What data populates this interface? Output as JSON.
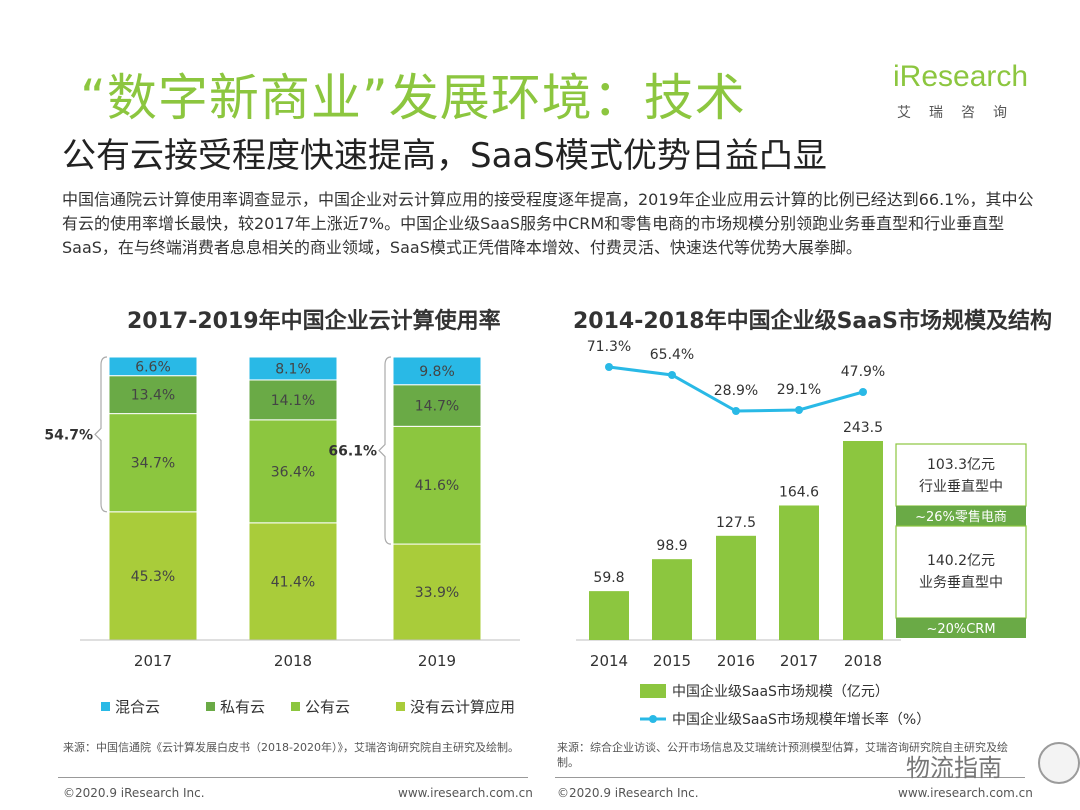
{
  "header": {
    "title": "“数字新商业”发展环境：技术",
    "subtitle": "公有云接受程度快速提高，SaaS模式优势日益凸显",
    "logo_text": "iResearch",
    "logo_sub": "艾瑞咨询"
  },
  "intro": "中国信通院云计算使用率调查显示，中国企业对云计算应用的接受程度逐年提高，2019年企业应用云计算的比例已经达到66.1%，其中公有云的使用率增长最快，较2017年上涨近7%。中国企业级SaaS服务中CRM和零售电商的市场规模分别领跑业务垂直型和行业垂直型SaaS，在与终端消费者息息相关的商业领域，SaaS模式正凭借降本增效、付费灵活、快速迭代等优势大展拳脚。",
  "chart_data": [
    {
      "type": "bar",
      "stacked": true,
      "title": "2017-2019年中国企业云计算使用率",
      "categories": [
        "2017",
        "2018",
        "2019"
      ],
      "series": [
        {
          "name": "没有云计算应用",
          "values": [
            45.3,
            41.4,
            33.9
          ],
          "labels": [
            "45.3%",
            "41.4%",
            "33.9%"
          ],
          "color": "#a9cc3a"
        },
        {
          "name": "公有云",
          "values": [
            34.7,
            36.4,
            41.6
          ],
          "labels": [
            "34.7%",
            "36.4%",
            "41.6%"
          ],
          "color": "#8cc63f"
        },
        {
          "name": "私有云",
          "values": [
            13.4,
            14.1,
            14.7
          ],
          "labels": [
            "13.4%",
            "14.1%",
            "14.7%"
          ],
          "color": "#6aaa46"
        },
        {
          "name": "混合云",
          "values": [
            6.6,
            8.1,
            9.8
          ],
          "labels": [
            "6.6%",
            "8.1%",
            "9.8%"
          ],
          "color": "#29b9e6"
        }
      ],
      "brackets": [
        {
          "category": "2017",
          "label": "54.7%"
        },
        {
          "category": "2019",
          "label": "66.1%"
        }
      ],
      "ylim": [
        0,
        100
      ]
    },
    {
      "type": "bar",
      "title": "2014-2018年中国企业级SaaS市场规模及结构",
      "categories": [
        "2014",
        "2015",
        "2016",
        "2017",
        "2018"
      ],
      "series": [
        {
          "name": "中国企业级SaaS市场规模（亿元）",
          "type": "bar",
          "values": [
            59.8,
            98.9,
            127.5,
            164.6,
            243.5
          ],
          "labels": [
            "59.8",
            "98.9",
            "127.5",
            "164.6",
            "243.5"
          ],
          "color": "#8cc63f"
        },
        {
          "name": "中国企业级SaaS市场规模年增长率（%）",
          "type": "line",
          "values": [
            71.3,
            65.4,
            28.9,
            29.1,
            47.9
          ],
          "labels": [
            "71.3%",
            "65.4%",
            "28.9%",
            "29.1%",
            "47.9%"
          ],
          "color": "#29b9e6"
        }
      ],
      "breakdown_2018": [
        {
          "value": "103.3亿元",
          "label": "行业垂直型中",
          "share": "~26%零售电商"
        },
        {
          "value": "140.2亿元",
          "label": "业务垂直型中",
          "share": "~20%CRM"
        }
      ]
    }
  ],
  "sources": {
    "left": "来源：中国信通院《云计算发展白皮书（2018-2020年）》，艾瑞咨询研究院自主研究及绘制。",
    "right": "来源：综合企业访谈、公开市场信息及艾瑞统计预测模型估算，艾瑞咨询研究院自主研究及绘制。"
  },
  "footer": {
    "copyright_left": "©2020.9 iResearch Inc.",
    "url_left": "www.iresearch.com.cn",
    "copyright_right": "©2020.9 iResearch Inc.",
    "url_right": "www.iresearch.com.cn"
  },
  "watermark": "物流指南",
  "colors": {
    "accent": "#8cc63f",
    "blue": "#29b9e6",
    "dark_green": "#6aaa46",
    "lime": "#a9cc3a"
  }
}
